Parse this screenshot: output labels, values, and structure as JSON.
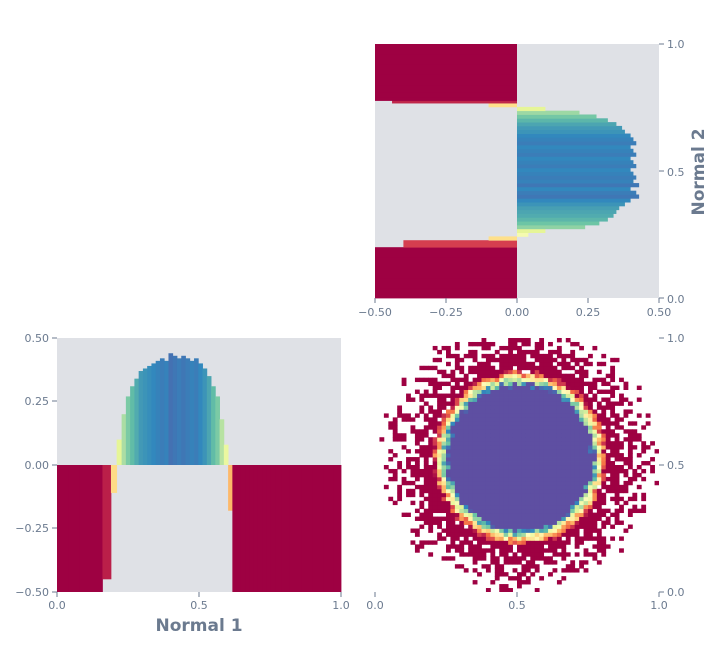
{
  "colors": {
    "panel_bg": "#dfe1e6",
    "tick_text": "#6b7a8f",
    "axis_label_text": "#6b7a8f",
    "colormap": "Spectral"
  },
  "chart_data": [
    {
      "id": "top-right",
      "type": "bar",
      "orientation": "horizontal",
      "description_free": true,
      "xlim": [
        -0.5,
        0.5
      ],
      "ylim": [
        0.0,
        1.0
      ],
      "xticks": [
        "−0.50",
        "−0.25",
        "0.00",
        "0.25",
        "0.50"
      ],
      "yticks": [
        "0.0",
        "0.5",
        "1.0"
      ],
      "ylabel": "Normal 2",
      "ylabel_side": "right",
      "y": [
        0.02,
        0.06,
        0.1,
        0.14,
        0.18,
        0.22,
        0.235,
        0.25,
        0.265,
        0.28,
        0.295,
        0.31,
        0.325,
        0.34,
        0.355,
        0.37,
        0.385,
        0.4,
        0.415,
        0.43,
        0.445,
        0.46,
        0.475,
        0.49,
        0.505,
        0.52,
        0.535,
        0.55,
        0.565,
        0.58,
        0.595,
        0.61,
        0.625,
        0.64,
        0.655,
        0.67,
        0.685,
        0.7,
        0.715,
        0.73,
        0.745,
        0.76,
        0.775,
        0.78,
        0.8,
        0.82,
        0.86,
        0.9,
        0.94,
        0.98
      ],
      "values": [
        -0.5,
        -0.5,
        -0.5,
        -0.5,
        -0.5,
        -0.4,
        -0.1,
        0.04,
        0.1,
        0.24,
        0.29,
        0.32,
        0.34,
        0.35,
        0.36,
        0.38,
        0.4,
        0.43,
        0.42,
        0.4,
        0.43,
        0.41,
        0.42,
        0.41,
        0.4,
        0.42,
        0.41,
        0.4,
        0.42,
        0.41,
        0.4,
        0.42,
        0.41,
        0.4,
        0.38,
        0.37,
        0.35,
        0.32,
        0.28,
        0.22,
        0.1,
        -0.1,
        -0.44,
        -0.5,
        -0.5,
        -0.5,
        -0.5,
        -0.5,
        -0.5,
        -0.5
      ]
    },
    {
      "id": "bottom-left",
      "type": "bar",
      "orientation": "vertical",
      "xlim": [
        0.0,
        1.0
      ],
      "ylim": [
        -0.5,
        0.5
      ],
      "xticks": [
        "0.0",
        "0.5",
        "1.0"
      ],
      "yticks": [
        "−0.50",
        "−0.25",
        "0.00",
        "0.25",
        "0.50"
      ],
      "xlabel": "Normal 1",
      "x": [
        0.02,
        0.06,
        0.1,
        0.14,
        0.18,
        0.2,
        0.22,
        0.235,
        0.25,
        0.265,
        0.28,
        0.295,
        0.31,
        0.325,
        0.34,
        0.355,
        0.37,
        0.385,
        0.4,
        0.415,
        0.43,
        0.445,
        0.46,
        0.475,
        0.49,
        0.505,
        0.52,
        0.535,
        0.55,
        0.565,
        0.58,
        0.595,
        0.61,
        0.625,
        0.64,
        0.655,
        0.67,
        0.685,
        0.7,
        0.715,
        0.73,
        0.745,
        0.76,
        0.78,
        0.8,
        0.84,
        0.88,
        0.92,
        0.96,
        0.99
      ],
      "values": [
        -0.5,
        -0.5,
        -0.5,
        -0.5,
        -0.45,
        -0.11,
        0.1,
        0.2,
        0.27,
        0.31,
        0.34,
        0.37,
        0.38,
        0.39,
        0.4,
        0.41,
        0.42,
        0.41,
        0.44,
        0.43,
        0.42,
        0.43,
        0.42,
        0.41,
        0.42,
        0.4,
        0.38,
        0.35,
        0.31,
        0.27,
        0.18,
        0.08,
        -0.18,
        -0.5,
        -0.5,
        -0.5,
        -0.5,
        -0.5,
        -0.5,
        -0.5,
        -0.5,
        -0.5,
        -0.5,
        -0.5,
        -0.5,
        -0.5,
        -0.5,
        -0.5,
        -0.5,
        -0.5
      ]
    },
    {
      "id": "bottom-right",
      "type": "heatmap",
      "xlim": [
        0.0,
        1.0
      ],
      "ylim": [
        0.0,
        1.0
      ],
      "xticks": [
        "0.0",
        "0.5",
        "1.0"
      ],
      "yticks": [
        "0.0",
        "0.5",
        "1.0"
      ],
      "center": [
        0.51,
        0.53
      ],
      "inner_radius": 0.285,
      "outer_radius": 0.47
    }
  ],
  "labels": {
    "xlabel_bottom": "Normal 1",
    "ylabel_right": "Normal 2"
  },
  "ticks": {
    "tr_x": [
      "−0.50",
      "−0.25",
      "0.00",
      "0.25",
      "0.50"
    ],
    "tr_y": [
      "0.0",
      "0.5",
      "1.0"
    ],
    "bl_x": [
      "0.0",
      "0.5",
      "1.0"
    ],
    "bl_y": [
      "−0.50",
      "−0.25",
      "0.00",
      "0.25",
      "0.50"
    ],
    "br_x": [
      "0.0",
      "0.5",
      "1.0"
    ],
    "br_y": [
      "0.0",
      "0.5",
      "1.0"
    ]
  }
}
